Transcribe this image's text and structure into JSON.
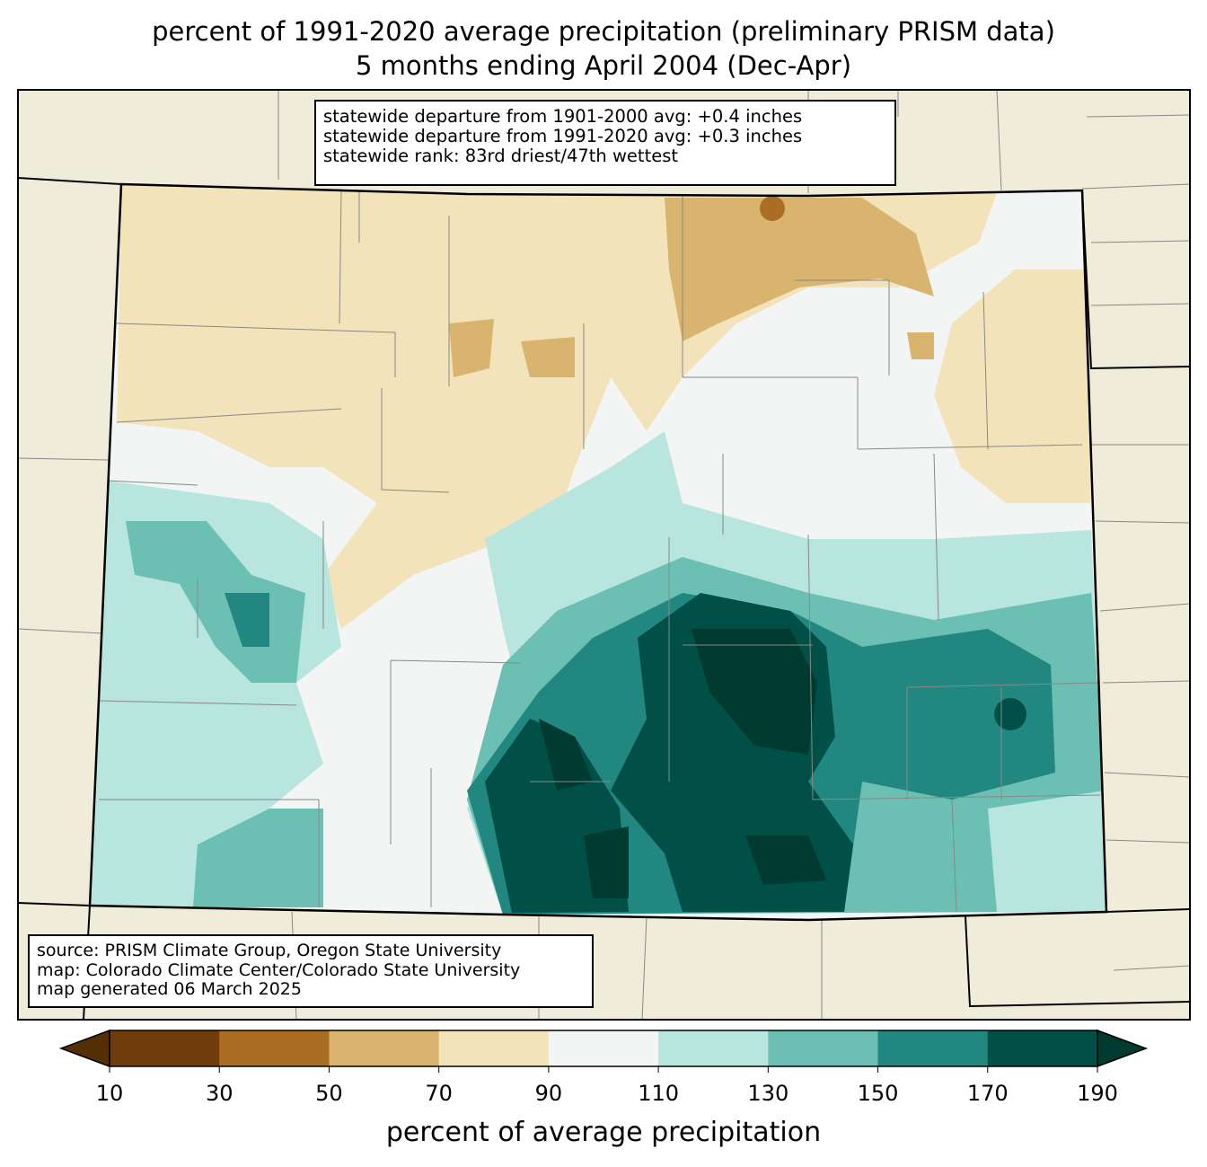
{
  "title": {
    "line1": "percent of 1991-2020 average precipitation (preliminary PRISM data)",
    "line2": "5 months ending April 2004 (Dec-Apr)"
  },
  "stats": {
    "line1": "statewide departure from 1901-2000 avg: +0.4 inches",
    "line2": "statewide departure from 1991-2020 avg: +0.3 inches",
    "line3": "statewide rank: 83rd driest/47th wettest"
  },
  "source": {
    "line1": "source: PRISM Climate Group, Oregon State University",
    "line2": "map: Colorado Climate Center/Colorado State University",
    "line3": "map generated 06 March 2025"
  },
  "colorbar": {
    "label": "percent of average precipitation",
    "ticks": [
      "10",
      "30",
      "50",
      "70",
      "90",
      "110",
      "130",
      "150",
      "170",
      "190"
    ],
    "colors": [
      "#6f3c0c",
      "#a96d24",
      "#d8b46e",
      "#f3e3bb",
      "#f3f5f4",
      "#b9e5df",
      "#6cbfb3",
      "#228780",
      "#005048"
    ],
    "under_color": "#553006",
    "over_color": "#003a30"
  },
  "land_color": "#efedd9"
}
